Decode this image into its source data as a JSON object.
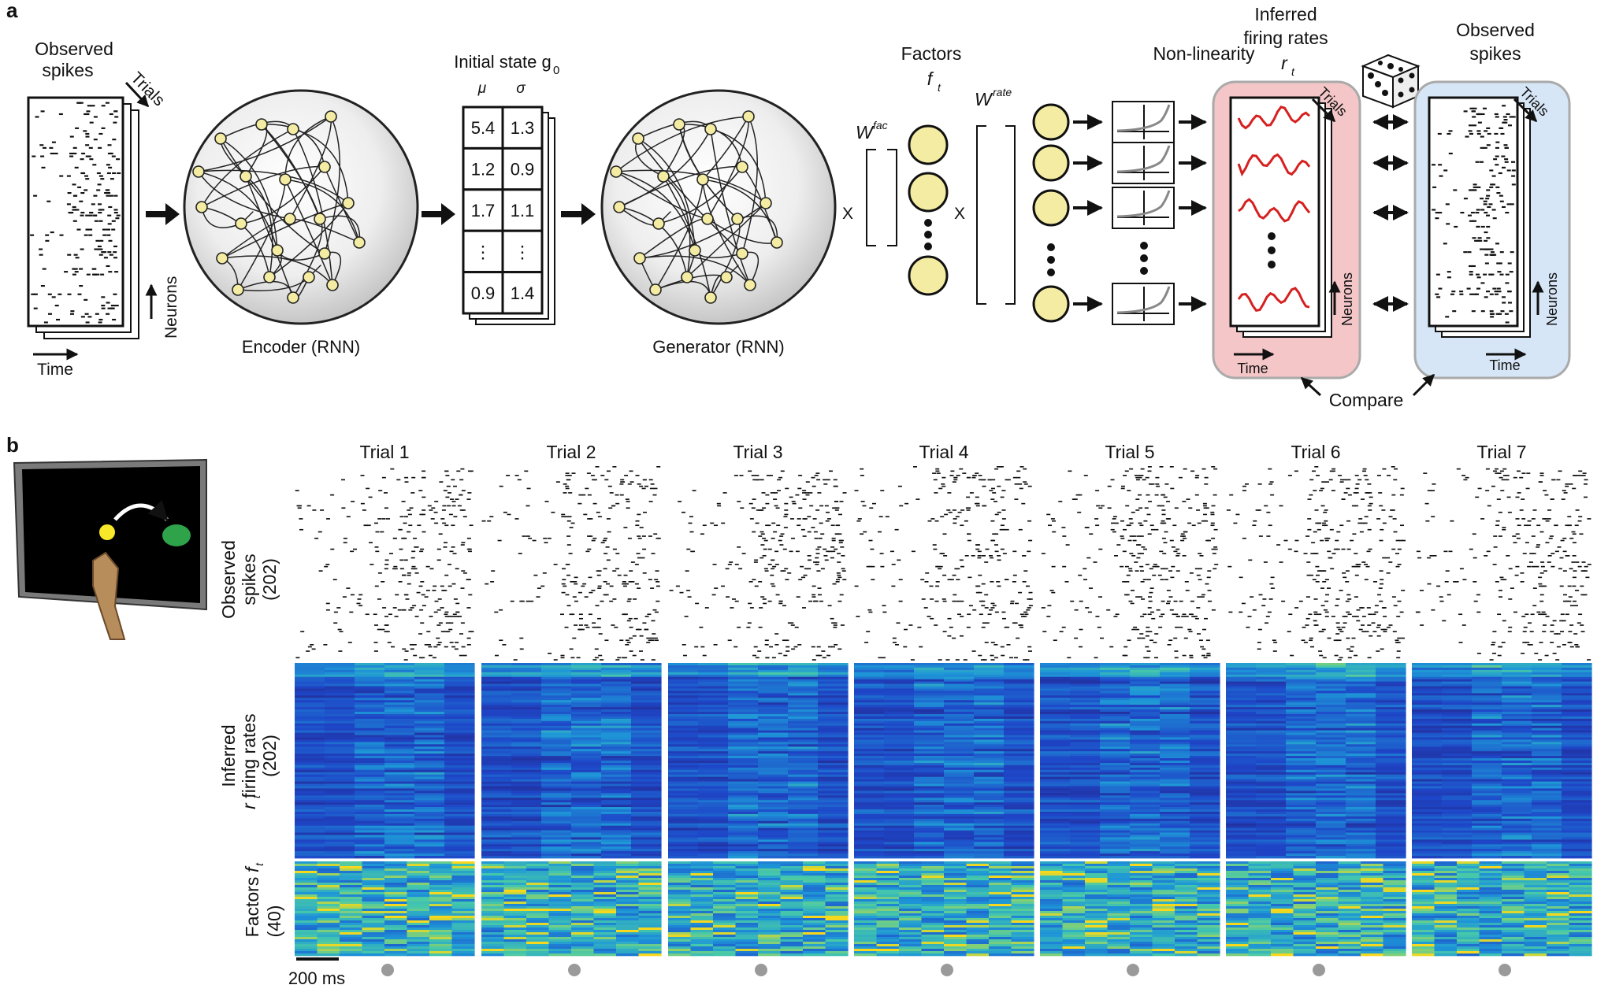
{
  "panel_a": {
    "label": "a",
    "observed_spikes_left": {
      "line1": "Observed",
      "line2": "spikes",
      "trials": "Trials",
      "neurons": "Neurons",
      "time": "Time"
    },
    "encoder": "Encoder (RNN)",
    "initial_state": {
      "title": "Initial state g",
      "subscript": "0",
      "mu": "μ",
      "sigma": "σ",
      "rows": [
        [
          "5.4",
          "1.3"
        ],
        [
          "1.2",
          "0.9"
        ],
        [
          "1.7",
          "1.1"
        ],
        [
          "⋮",
          "⋮"
        ],
        [
          "0.9",
          "1.4"
        ]
      ]
    },
    "generator": "Generator (RNN)",
    "factors": {
      "line1": "Factors",
      "symbol": "f",
      "sub": "t"
    },
    "w_fac": {
      "base": "W",
      "sup": "fac"
    },
    "w_rate": {
      "base": "W",
      "sup": "rate"
    },
    "times": "X",
    "nonlinearity": "Non-linearity",
    "inferred": {
      "line1": "Inferred",
      "line2": "firing rates",
      "symbol": "r",
      "sub": "t",
      "trials": "Trials",
      "neurons": "Neurons",
      "time": "Time"
    },
    "observed_spikes_right": {
      "line1": "Observed",
      "line2": "spikes",
      "trials": "Trials",
      "neurons": "Neurons",
      "time": "Time"
    },
    "compare": "Compare",
    "colors": {
      "rnn_node": "#f3eca2",
      "rates_panel": "#f4c6c8",
      "spikes_panel": "#d6e6f6",
      "rate_curve": "#d62020"
    }
  },
  "panel_b": {
    "label": "b",
    "trials": [
      "Trial 1",
      "Trial 2",
      "Trial 3",
      "Trial 4",
      "Trial 5",
      "Trial 6",
      "Trial 7"
    ],
    "row_labels": {
      "spikes": {
        "line1": "Observed",
        "line2": "spikes",
        "count": "(202)"
      },
      "rates": {
        "line1": "Inferred",
        "line2": "firing rates",
        "symbol": "r",
        "sub": "t",
        "count": "(202)"
      },
      "factors": {
        "line1": "Factors",
        "symbol": "f",
        "sub": "t",
        "count": "(40)"
      }
    },
    "scalebar": "200 ms",
    "colors": {
      "heat_low": "#2a2a8c",
      "heat_mid": "#1e9bd7",
      "heat_high": "#f6d81c",
      "marker": "#9a9a9a"
    }
  }
}
